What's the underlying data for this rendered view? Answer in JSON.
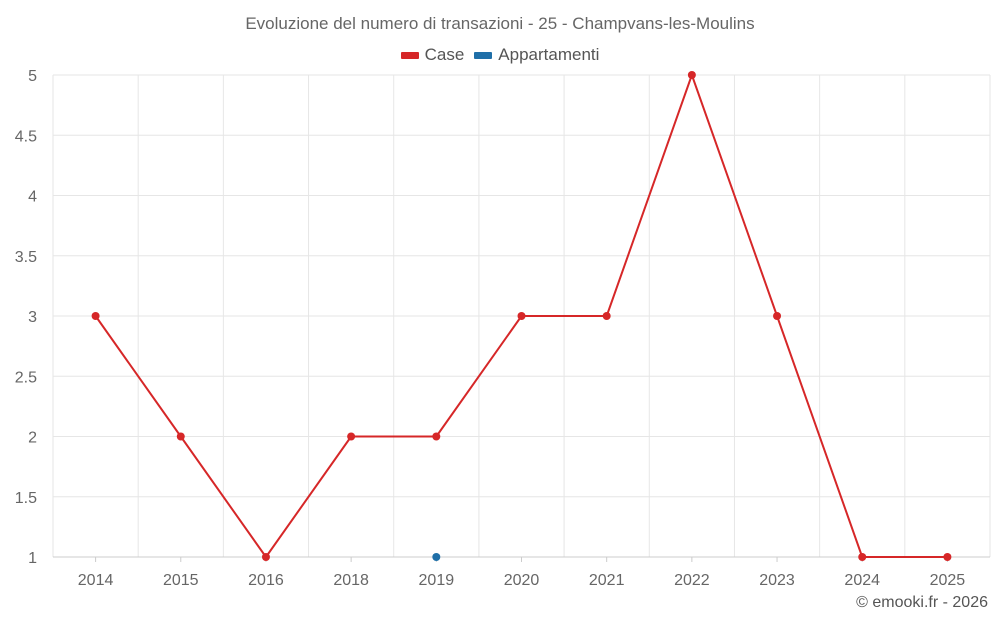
{
  "chart_data": {
    "type": "line",
    "title": "Evoluzione del numero di transazioni - 25 - Champvans-les-Moulins",
    "categories": [
      "2014",
      "2015",
      "2016",
      "2018",
      "2019",
      "2020",
      "2021",
      "2022",
      "2023",
      "2024",
      "2025"
    ],
    "series": [
      {
        "name": "Case",
        "color": "#d62728",
        "values": [
          3,
          2,
          1,
          2,
          2,
          3,
          3,
          5,
          3,
          1,
          1
        ]
      },
      {
        "name": "Appartamenti",
        "color": "#1f6fa8",
        "values": [
          null,
          null,
          null,
          null,
          1,
          null,
          null,
          null,
          null,
          null,
          null
        ]
      }
    ],
    "ylim": [
      1,
      5
    ],
    "yticks": [
      "1",
      "1.5",
      "2",
      "2.5",
      "3",
      "3.5",
      "4",
      "4.5",
      "5"
    ],
    "grid": true,
    "legend": "top-center"
  },
  "credit": "© emooki.fr - 2026"
}
